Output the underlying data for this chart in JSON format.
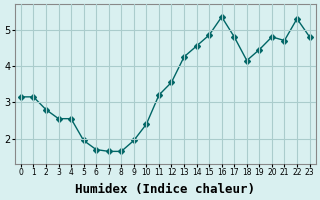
{
  "x": [
    0,
    1,
    2,
    3,
    4,
    5,
    6,
    7,
    8,
    9,
    10,
    11,
    12,
    13,
    14,
    15,
    16,
    17,
    18,
    19,
    20,
    21,
    22,
    23
  ],
  "y": [
    3.15,
    3.15,
    2.8,
    2.55,
    2.55,
    1.95,
    1.7,
    1.65,
    1.65,
    1.95,
    2.4,
    3.2,
    3.55,
    4.25,
    4.55,
    4.85,
    5.35,
    4.8,
    4.15,
    4.45,
    4.8,
    4.7,
    5.3,
    4.8
  ],
  "line_color": "#006666",
  "marker": "D",
  "marker_size": 3,
  "bg_color": "#d9f0f0",
  "grid_color": "#aacccc",
  "xlabel": "Humidex (Indice chaleur)",
  "xlabel_fontsize": 9,
  "ylabel_ticks": [
    2,
    3,
    4,
    5
  ],
  "xtick_labels": [
    "0",
    "1",
    "2",
    "3",
    "4",
    "5",
    "6",
    "7",
    "8",
    "9",
    "10",
    "11",
    "12",
    "13",
    "14",
    "15",
    "16",
    "17",
    "18",
    "19",
    "20",
    "21",
    "22",
    "23"
  ],
  "ylim": [
    1.3,
    5.7
  ],
  "xlim": [
    -0.5,
    23.5
  ]
}
